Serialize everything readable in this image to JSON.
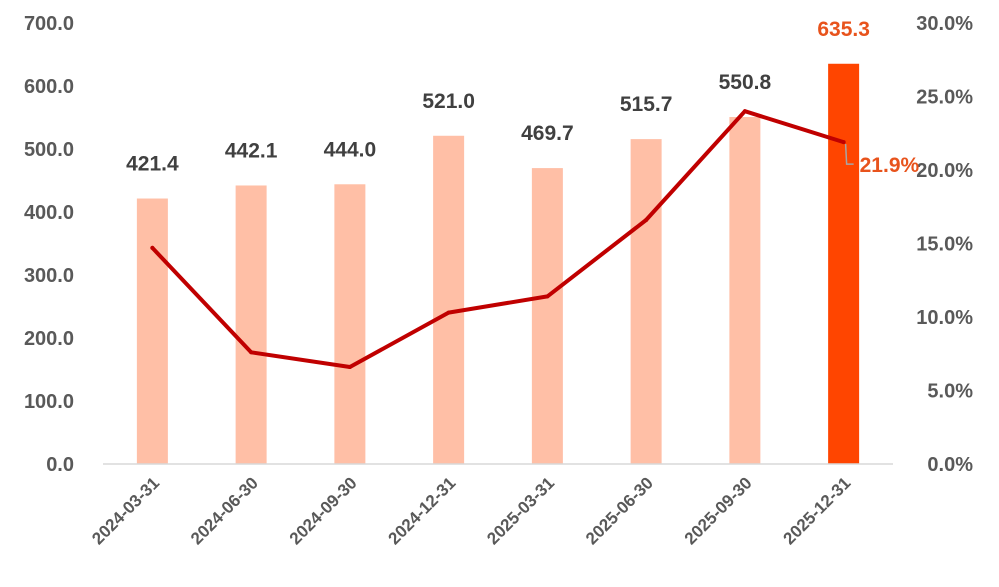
{
  "chart_data": {
    "type": "bar",
    "categories": [
      "2024-03-31",
      "2024-06-30",
      "2024-09-30",
      "2024-12-31",
      "2025-03-31",
      "2025-06-30",
      "2025-09-30",
      "2025-12-31"
    ],
    "y_left_ticks": [
      "0.0",
      "100.0",
      "200.0",
      "300.0",
      "400.0",
      "500.0",
      "600.0",
      "700.0"
    ],
    "y_right_ticks": [
      "0.0%",
      "5.0%",
      "10.0%",
      "15.0%",
      "20.0%",
      "25.0%",
      "30.0%"
    ],
    "ylim_left": [
      0,
      700
    ],
    "ylim_right": [
      0,
      30
    ],
    "series": [
      {
        "type": "bar",
        "axis": "left",
        "values": [
          421.4,
          442.1,
          444.0,
          521.0,
          469.7,
          515.7,
          550.8,
          635.3
        ],
        "labels": [
          "421.4",
          "442.1",
          "444.0",
          "521.0",
          "469.7",
          "515.7",
          "550.8",
          "635.3"
        ]
      },
      {
        "type": "line",
        "axis": "right",
        "values": [
          14.7,
          7.6,
          6.6,
          10.3,
          11.4,
          16.6,
          24.0,
          21.9
        ],
        "last_label": "21.9%"
      }
    ],
    "colors": {
      "bar": "#ffbfa6",
      "bar_highlight": "#ff4500",
      "line": "#c00000",
      "label_highlight": "#e8531c",
      "axis": "#d9d9d9"
    },
    "grid": false,
    "legend": "none",
    "highlight_index": 7
  }
}
